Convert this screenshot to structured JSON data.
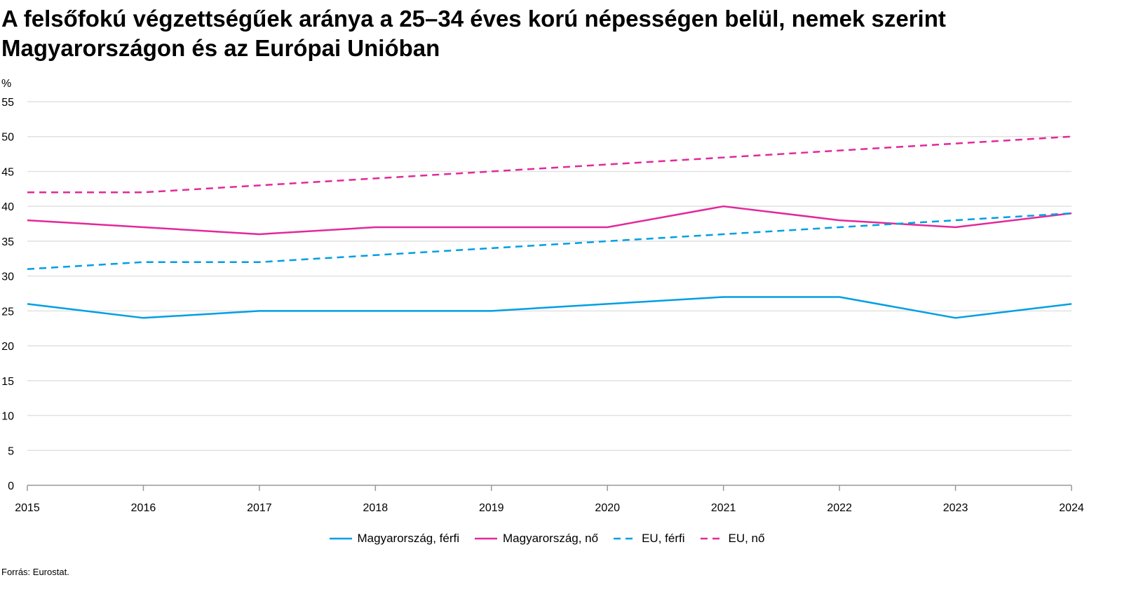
{
  "title": "A felsőfokú végzettségűek aránya a 25–34 éves korú népességen belül, nemek szerint Magyarországon és az Európai Unióban",
  "source": "Forrás: Eurostat.",
  "chart_data": {
    "type": "line",
    "title": "A felsőfokú végzettségűek aránya a 25–34 éves korú népességen belül, nemek szerint Magyarországon és az Európai Unióban",
    "ylabel": "%",
    "xlabel": "",
    "x": [
      "2015",
      "2016",
      "2017",
      "2018",
      "2019",
      "2020",
      "2021",
      "2022",
      "2023",
      "2024"
    ],
    "ylim": [
      0,
      55
    ],
    "yticks": [
      0,
      5,
      10,
      15,
      20,
      25,
      30,
      35,
      40,
      45,
      50,
      55
    ],
    "grid": true,
    "legend_position": "bottom",
    "series": [
      {
        "name": "Magyarország, férfi",
        "color": "#009fe3",
        "dash": false,
        "values": [
          26,
          24,
          25,
          25,
          25,
          26,
          27,
          27,
          24,
          26
        ]
      },
      {
        "name": "Magyarország, nő",
        "color": "#e2299a",
        "dash": false,
        "values": [
          38,
          37,
          36,
          37,
          37,
          37,
          40,
          38,
          37,
          39
        ]
      },
      {
        "name": "EU, férfi",
        "color": "#009fe3",
        "dash": true,
        "values": [
          31,
          32,
          32,
          33,
          34,
          35,
          36,
          37,
          38,
          39
        ]
      },
      {
        "name": "EU, nő",
        "color": "#e2299a",
        "dash": true,
        "values": [
          42,
          42,
          43,
          44,
          45,
          46,
          47,
          48,
          49,
          50
        ]
      }
    ]
  }
}
